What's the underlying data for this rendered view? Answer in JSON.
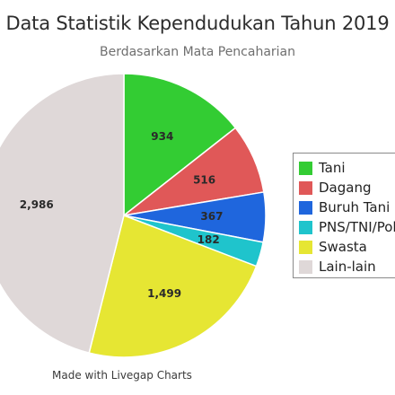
{
  "chart_data": {
    "type": "pie",
    "title": "Data Statistik Kependudukan Tahun 2019",
    "subtitle": "Berdasarkan Mata Pencaharian",
    "slices": [
      {
        "label": "Tani",
        "value": 934,
        "value_label": "934",
        "color": "#33cc33"
      },
      {
        "label": "Dagang",
        "value": 516,
        "value_label": "516",
        "color": "#e05858"
      },
      {
        "label": "Buruh Tani",
        "value": 367,
        "value_label": "367",
        "color": "#1f66dd"
      },
      {
        "label": "PNS/TNI/Polri",
        "value": 182,
        "value_label": "182",
        "color": "#1fc4cc"
      },
      {
        "label": "Swasta",
        "value": 1499,
        "value_label": "1,499",
        "color": "#e6e633"
      },
      {
        "label": "Lain-lain",
        "value": 2986,
        "value_label": "2,986",
        "color": "#dfd8d8"
      }
    ],
    "legend": "right"
  },
  "credit": "Made with Livegap Charts"
}
